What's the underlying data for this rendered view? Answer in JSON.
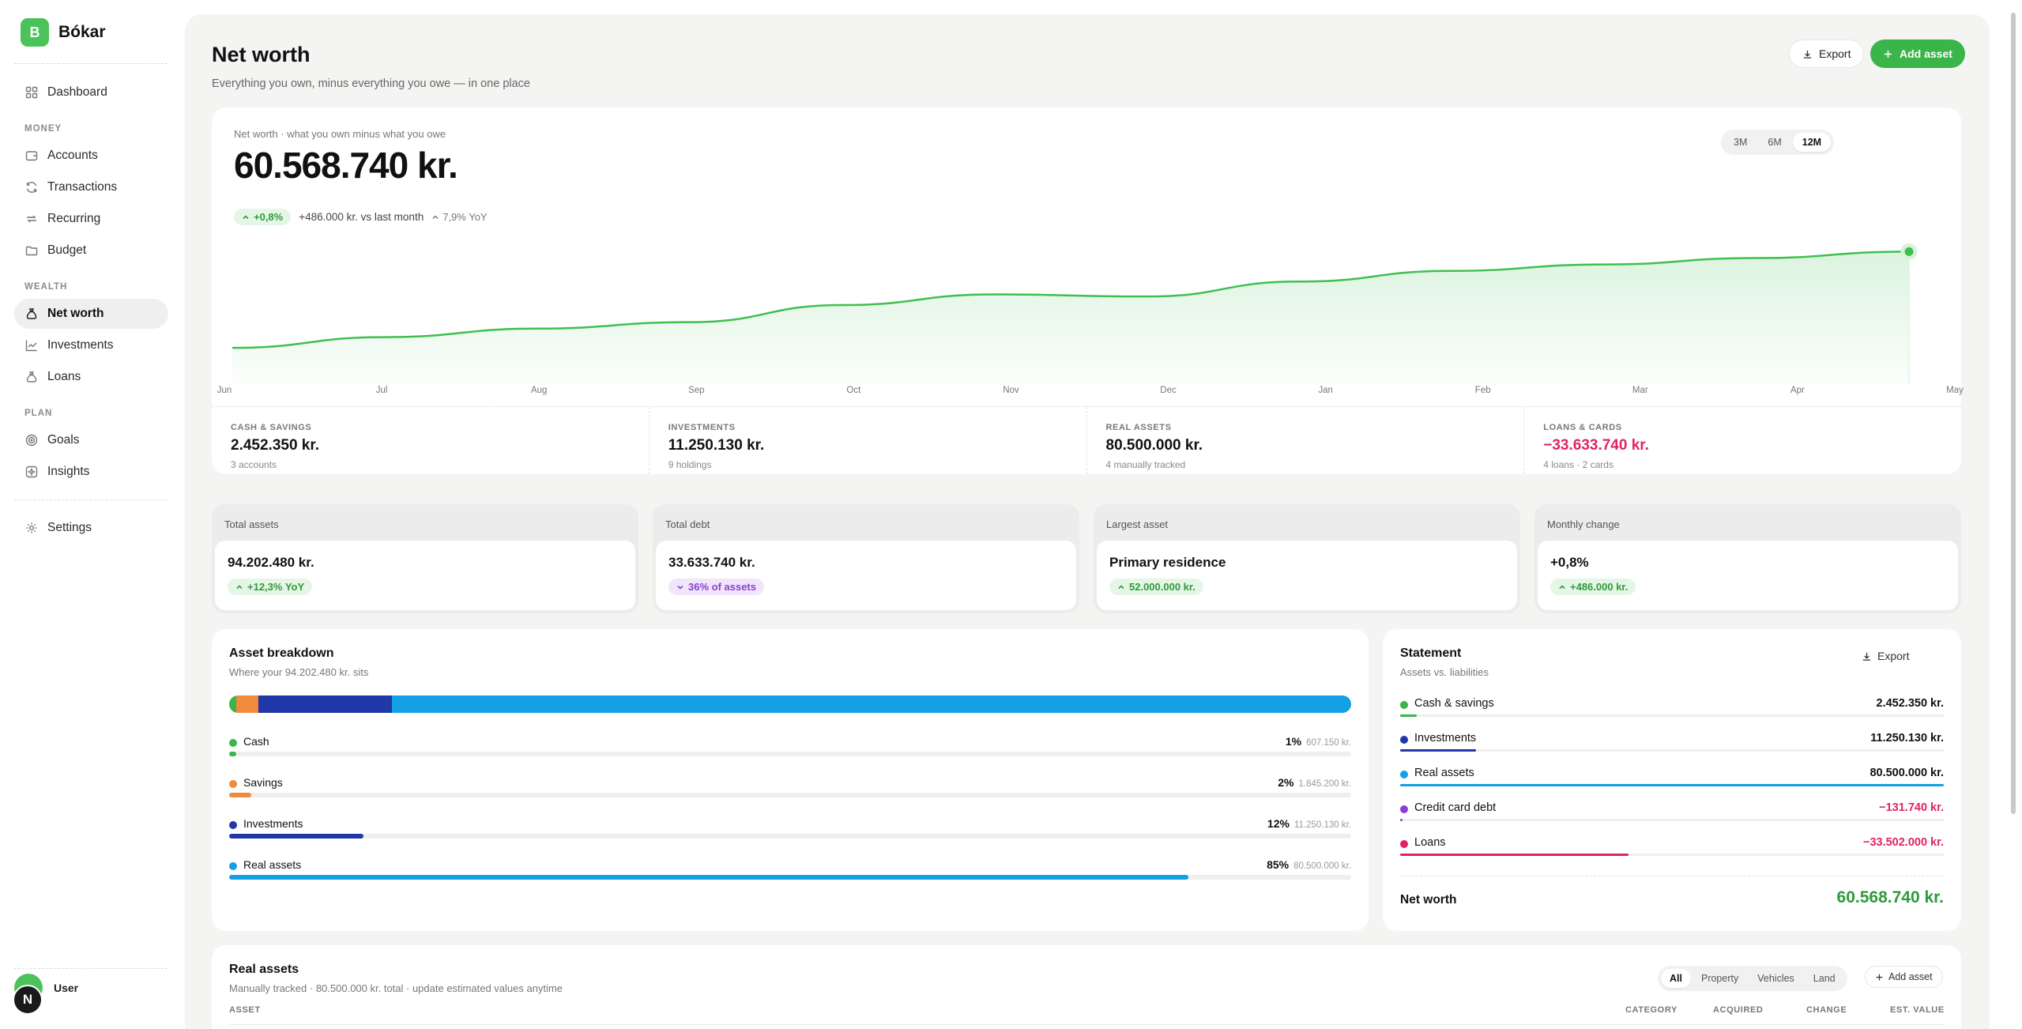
{
  "app": {
    "logo_letter": "B",
    "name": "Bókar"
  },
  "sidebar": {
    "sections": {
      "money": "MONEY",
      "wealth": "WEALTH",
      "plan": "PLAN"
    },
    "items": [
      {
        "label": "Dashboard",
        "icon": "grid-icon"
      },
      {
        "label": "Accounts",
        "icon": "wallet-icon"
      },
      {
        "label": "Transactions",
        "icon": "refresh-icon"
      },
      {
        "label": "Recurring",
        "icon": "repeat-icon"
      },
      {
        "label": "Budget",
        "icon": "folder-icon"
      },
      {
        "label": "Net worth",
        "icon": "moneybag-icon",
        "active": true
      },
      {
        "label": "Investments",
        "icon": "trend-icon"
      },
      {
        "label": "Loans",
        "icon": "moneybag-icon"
      },
      {
        "label": "Goals",
        "icon": "target-icon"
      },
      {
        "label": "Insights",
        "icon": "sparkle-icon"
      },
      {
        "label": "Settings",
        "icon": "gear-icon"
      }
    ],
    "user": {
      "name": "User",
      "badge": "N"
    }
  },
  "header": {
    "title": "Net worth",
    "subtitle": "Everything you own, minus everything you owe — in one place",
    "export_label": "Export",
    "add_label": "Add asset"
  },
  "hero": {
    "label": "Net worth · what you own minus what you owe",
    "value": "60.568.740 kr.",
    "pct_change": "+0,8%",
    "abs_change": "+486.000 kr. vs last month",
    "yoy": "7,9% YoY",
    "ranges": [
      "3M",
      "6M",
      "12M"
    ],
    "active_range": "12M"
  },
  "chart_data": {
    "type": "area",
    "x": [
      "Jun",
      "Jul",
      "Aug",
      "Sep",
      "Oct",
      "Nov",
      "Dec",
      "Jan",
      "Feb",
      "Mar",
      "Apr",
      "May"
    ],
    "values": [
      56.1,
      56.6,
      57.0,
      57.3,
      58.1,
      58.6,
      58.5,
      59.2,
      59.7,
      60.0,
      60.3,
      60.6
    ],
    "units": "million kr.",
    "ylim": [
      54.7,
      61.5
    ],
    "grid": false,
    "color": "#3fbf4f"
  },
  "hero_stats": [
    {
      "label": "CASH & SAVINGS",
      "value": "2.452.350 kr.",
      "sub": "3 accounts",
      "negative": false
    },
    {
      "label": "INVESTMENTS",
      "value": "11.250.130 kr.",
      "sub": "9 holdings",
      "negative": false
    },
    {
      "label": "REAL ASSETS",
      "value": "80.500.000 kr.",
      "sub": "4 manually tracked",
      "negative": false
    },
    {
      "label": "LOANS & CARDS",
      "value": "−33.633.740 kr.",
      "sub": "4 loans · 2 cards",
      "negative": true
    }
  ],
  "kpis": [
    {
      "label": "Total assets",
      "value": "94.202.480 kr.",
      "pill": "+12,3% YoY",
      "pill_style": "green"
    },
    {
      "label": "Total debt",
      "value": "33.633.740 kr.",
      "pill": "36% of assets",
      "pill_style": "purple"
    },
    {
      "label": "Largest asset",
      "value": "Primary residence",
      "pill": "52.000.000 kr.",
      "pill_style": "green"
    },
    {
      "label": "Monthly change",
      "value": "+0,8%",
      "pill": "+486.000 kr.",
      "pill_style": "green"
    }
  ],
  "breakdown": {
    "title": "Asset breakdown",
    "subtitle": "Where your 94.202.480 kr. sits",
    "items": [
      {
        "name": "Cash",
        "pct": "1%",
        "amount": "607.150 kr.",
        "share": 0.0064,
        "color": "#3bb54a"
      },
      {
        "name": "Savings",
        "pct": "2%",
        "amount": "1.845.200 kr.",
        "share": 0.0196,
        "color": "#f08a3c"
      },
      {
        "name": "Investments",
        "pct": "12%",
        "amount": "11.250.130 kr.",
        "share": 0.1194,
        "color": "#2238a8"
      },
      {
        "name": "Real assets",
        "pct": "85%",
        "amount": "80.500.000 kr.",
        "share": 0.8546,
        "color": "#14a0e4"
      }
    ]
  },
  "statement": {
    "title": "Statement",
    "subtitle": "Assets vs. liabilities",
    "export_label": "Export",
    "rows": [
      {
        "name": "Cash & savings",
        "value": "2.452.350 kr.",
        "negative": false,
        "share": 0.03,
        "color": "#3bb54a"
      },
      {
        "name": "Investments",
        "value": "11.250.130 kr.",
        "negative": false,
        "share": 0.14,
        "color": "#2238a8"
      },
      {
        "name": "Real assets",
        "value": "80.500.000 kr.",
        "negative": false,
        "share": 1.0,
        "color": "#14a0e4"
      },
      {
        "name": "Credit card debt",
        "value": "−131.740 kr.",
        "negative": true,
        "share": 0.004,
        "color": "#8b3fd6"
      },
      {
        "name": "Loans",
        "value": "−33.502.000 kr.",
        "negative": true,
        "share": 0.42,
        "color": "#e0245e"
      }
    ],
    "net_label": "Net worth",
    "net_value": "60.568.740 kr."
  },
  "real_assets": {
    "title": "Real assets",
    "subtitle": "Manually tracked · 80.500.000 kr. total · update estimated values anytime",
    "tabs": [
      "All",
      "Property",
      "Vehicles",
      "Land"
    ],
    "active_tab": "All",
    "add_label": "Add asset",
    "columns": [
      "ASSET",
      "CATEGORY",
      "ACQUIRED",
      "CHANGE",
      "EST. VALUE"
    ]
  }
}
